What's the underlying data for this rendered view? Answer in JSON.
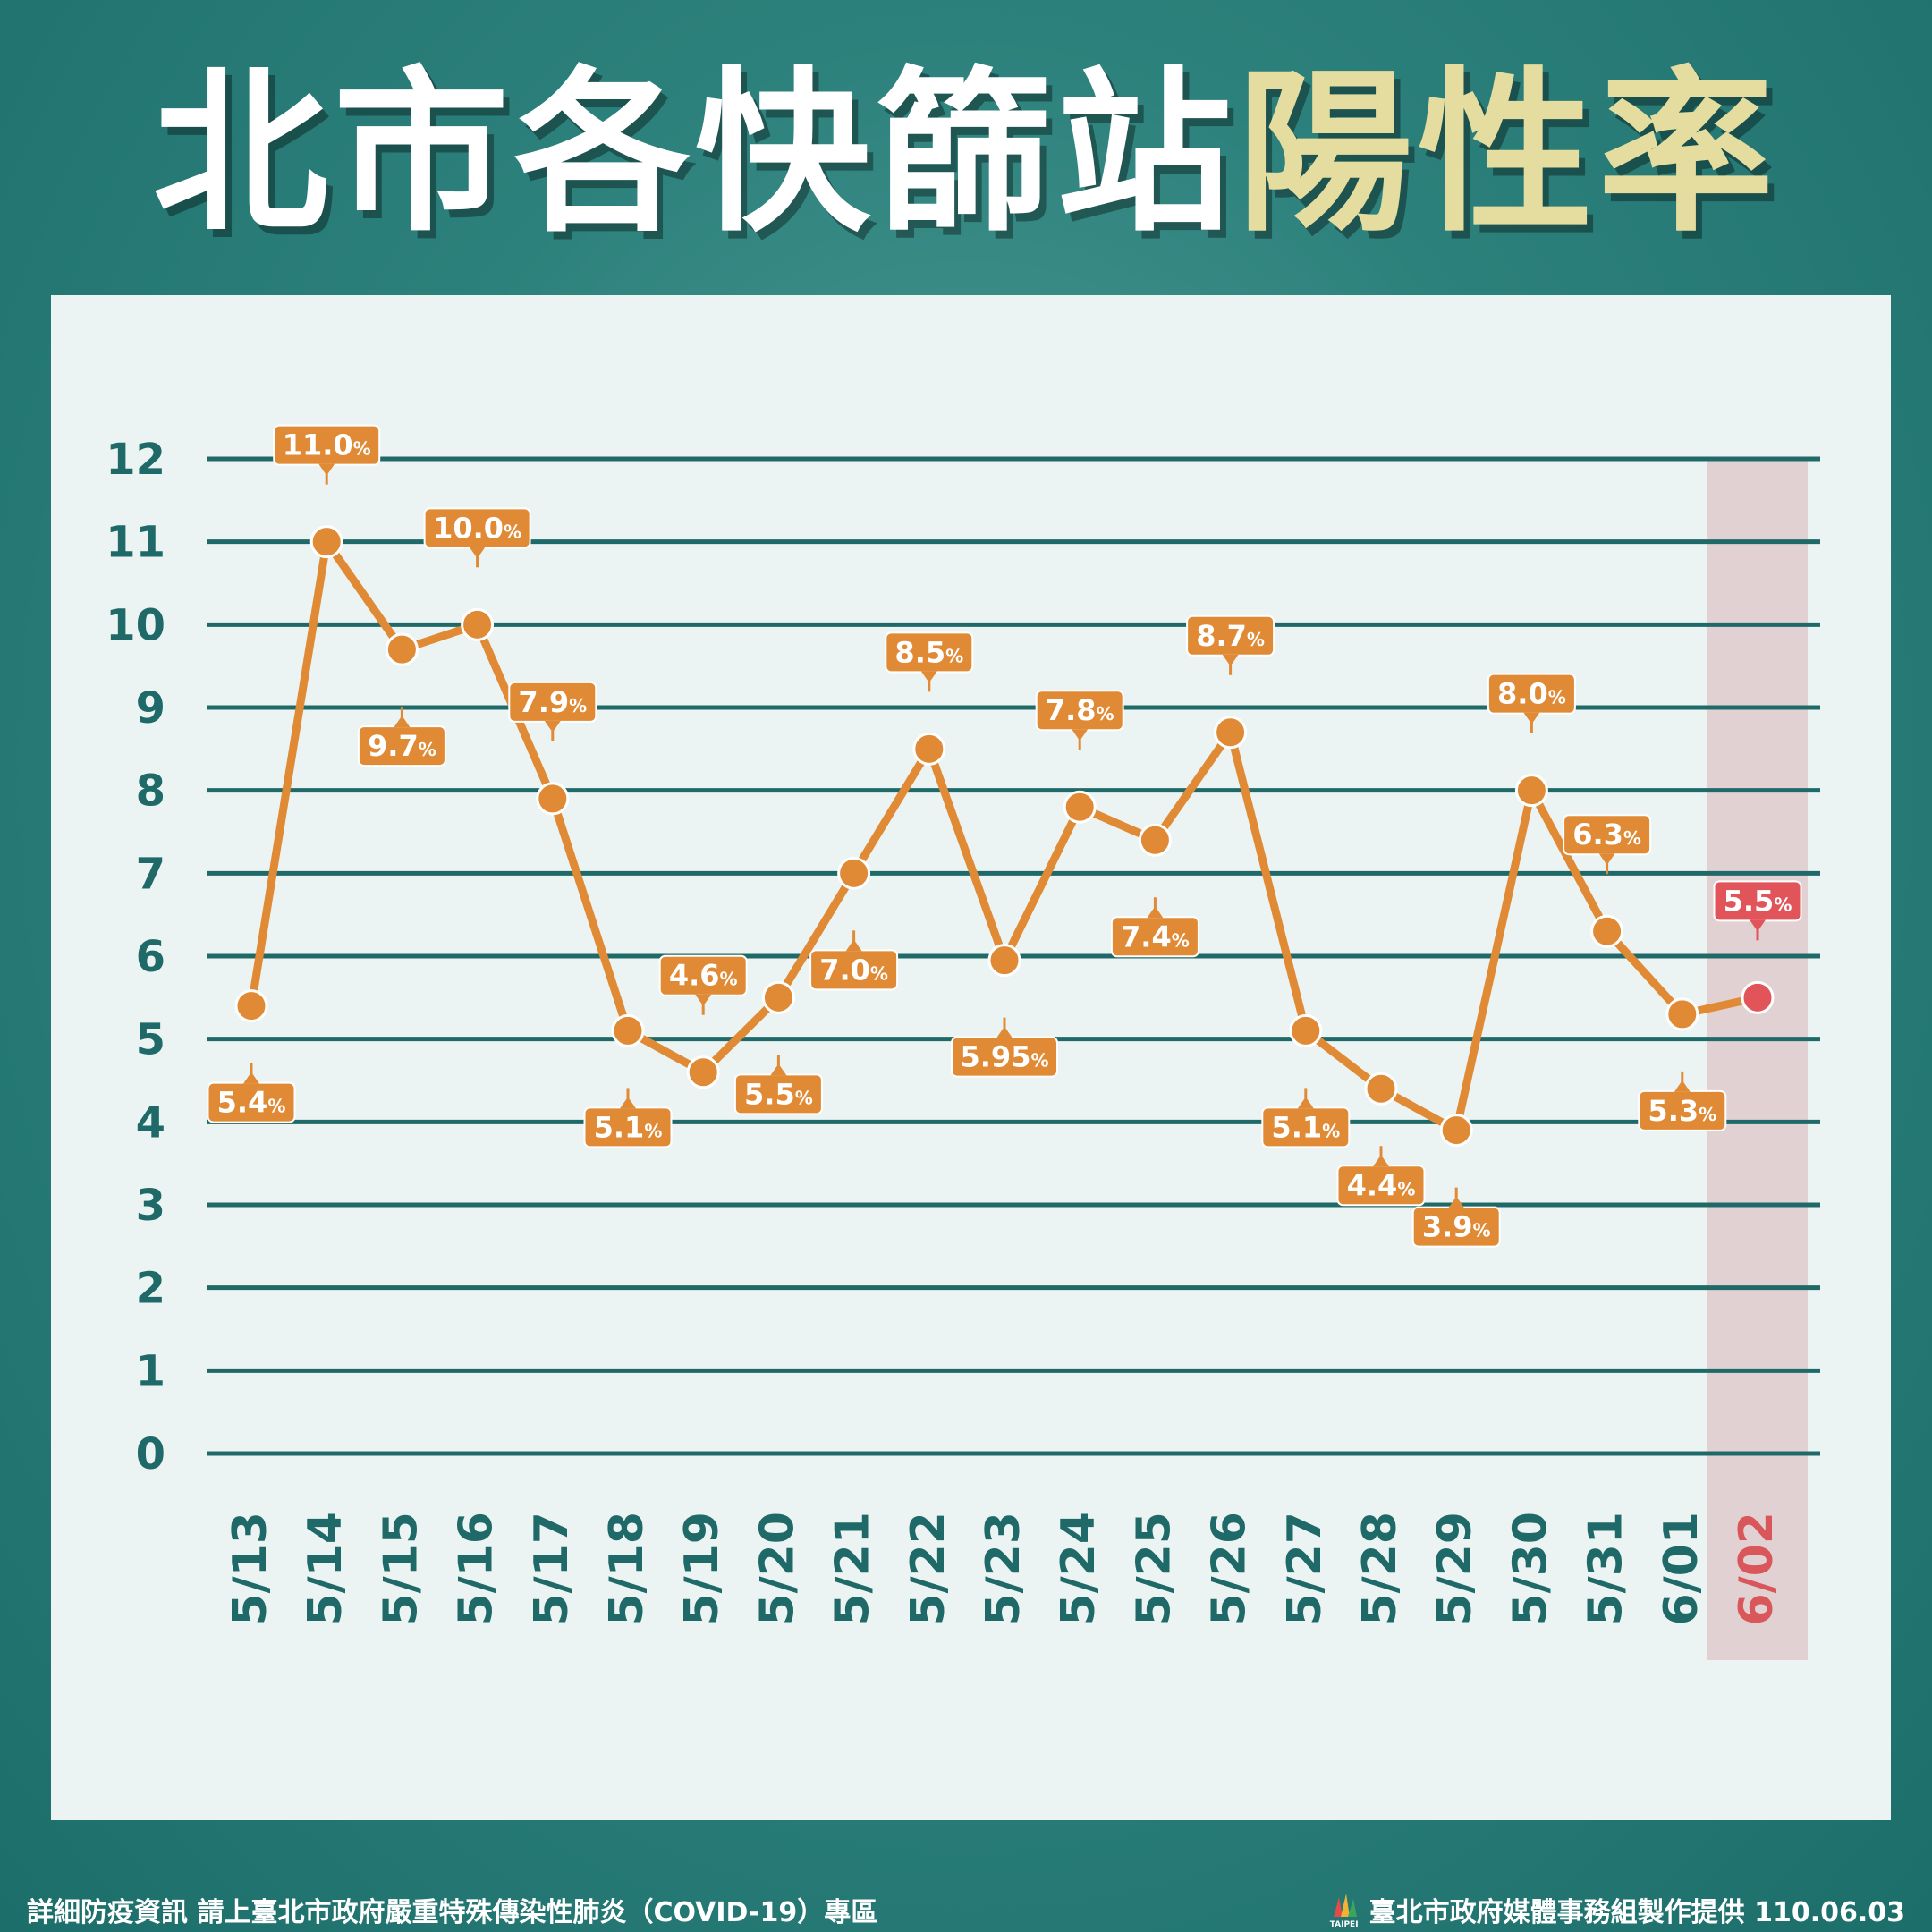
{
  "title": {
    "part1": "北市各快篩站",
    "part2": "陽性率"
  },
  "chart_data": {
    "type": "line",
    "categories": [
      "5/13",
      "5/14",
      "5/15",
      "5/16",
      "5/17",
      "5/18",
      "5/19",
      "5/20",
      "5/21",
      "5/22",
      "5/23",
      "5/24",
      "5/25",
      "5/26",
      "5/27",
      "5/28",
      "5/29",
      "5/30",
      "5/31",
      "6/01",
      "6/02"
    ],
    "values": [
      5.4,
      11.0,
      9.7,
      10.0,
      7.9,
      5.1,
      4.6,
      5.5,
      7.0,
      8.5,
      5.95,
      7.8,
      7.4,
      8.7,
      5.1,
      4.4,
      3.9,
      8.0,
      6.3,
      5.3,
      5.5
    ],
    "labels": [
      "5.4",
      "11.0",
      "9.7",
      "10.0",
      "7.9",
      "5.1",
      "4.6",
      "5.5",
      "7.0",
      "8.5",
      "5.95",
      "7.8",
      "7.4",
      "8.7",
      "5.1",
      "4.4",
      "3.9",
      "8.0",
      "6.3",
      "5.3",
      "5.5"
    ],
    "label_unit": "%",
    "label_side": [
      "below",
      "above",
      "below",
      "above",
      "above",
      "below",
      "above",
      "below",
      "below",
      "above",
      "below",
      "above",
      "below",
      "above",
      "below",
      "below",
      "below",
      "above",
      "above",
      "below",
      "above"
    ],
    "yticks": [
      "0",
      "1",
      "2",
      "3",
      "4",
      "5",
      "6",
      "7",
      "8",
      "9",
      "10",
      "11",
      "12"
    ],
    "ylim": [
      0,
      12
    ],
    "highlight_index": 20,
    "grid": true,
    "colors": {
      "line": "#e08a35",
      "highlight": "#e0545a",
      "grid": "#1f6a68",
      "highlight_band": "#e2d1d2",
      "axis_text": "#1f6a68"
    }
  },
  "footer": {
    "left": "詳細防疫資訊 請上臺北市政府嚴重特殊傳染性肺炎（COVID-19）專區",
    "logo_text": "TAIPEI",
    "right": "臺北市政府媒體事務組製作提供 110.06.03"
  }
}
